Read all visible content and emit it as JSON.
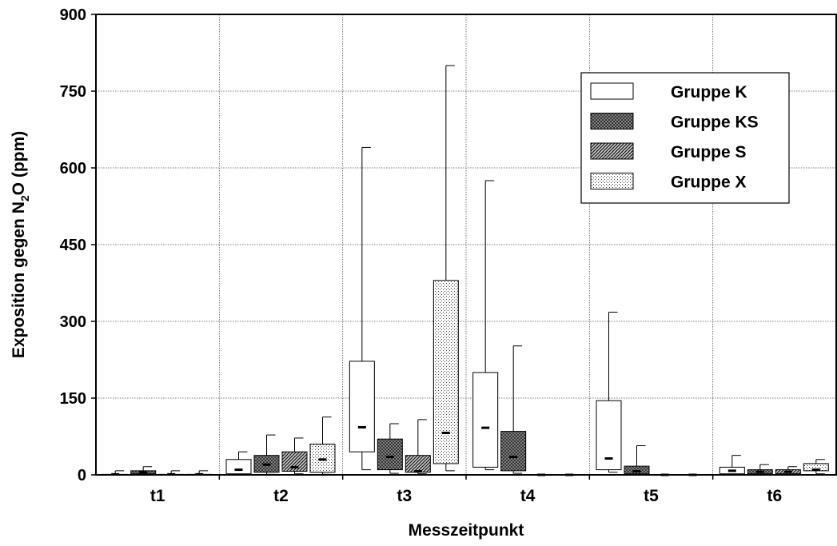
{
  "chart_data": {
    "type": "box",
    "title": "",
    "xlabel": "Messzeitpunkt",
    "ylabel": "Exposition gegen N₂O (ppm)",
    "ylabel_parts": {
      "before": "Exposition gegen N",
      "subscript": "2",
      "after": "O (ppm)"
    },
    "ylim": [
      0,
      900
    ],
    "yticks": [
      0,
      150,
      300,
      450,
      600,
      750,
      900
    ],
    "grid": true,
    "legend_position": "top-right",
    "categories": [
      "t1",
      "t2",
      "t3",
      "t4",
      "t5",
      "t6"
    ],
    "series": [
      {
        "name": "Gruppe K",
        "fill": "white",
        "boxes": [
          {
            "min": 0,
            "q1": 0,
            "median": 1,
            "q3": 1,
            "max": 8
          },
          {
            "min": 1,
            "q1": 2,
            "median": 10,
            "q3": 30,
            "max": 45
          },
          {
            "min": 10,
            "q1": 45,
            "median": 93,
            "q3": 222,
            "max": 640
          },
          {
            "min": 10,
            "q1": 15,
            "median": 92,
            "q3": 200,
            "max": 575
          },
          {
            "min": 5,
            "q1": 10,
            "median": 32,
            "q3": 145,
            "max": 318
          },
          {
            "min": 1,
            "q1": 2,
            "median": 8,
            "q3": 15,
            "max": 38
          }
        ]
      },
      {
        "name": "Gruppe KS",
        "fill": "crosshatch",
        "boxes": [
          {
            "min": 0,
            "q1": 2,
            "median": 5,
            "q3": 8,
            "max": 16
          },
          {
            "min": 1,
            "q1": 5,
            "median": 20,
            "q3": 38,
            "max": 78
          },
          {
            "min": 3,
            "q1": 10,
            "median": 35,
            "q3": 70,
            "max": 100
          },
          {
            "min": 3,
            "q1": 8,
            "median": 35,
            "q3": 85,
            "max": 252
          },
          {
            "min": 1,
            "q1": 2,
            "median": 7,
            "q3": 17,
            "max": 57
          },
          {
            "min": 0,
            "q1": 2,
            "median": 6,
            "q3": 10,
            "max": 20
          }
        ]
      },
      {
        "name": "Gruppe S",
        "fill": "diagonal",
        "boxes": [
          {
            "min": 0,
            "q1": 0,
            "median": 1,
            "q3": 1,
            "max": 8
          },
          {
            "min": 2,
            "q1": 7,
            "median": 15,
            "q3": 45,
            "max": 72
          },
          {
            "min": 2,
            "q1": 5,
            "median": 7,
            "q3": 38,
            "max": 108
          },
          {
            "min": 0,
            "q1": 0,
            "median": 0,
            "q3": 0,
            "max": 0
          },
          {
            "min": 0,
            "q1": 0,
            "median": 0,
            "q3": 0,
            "max": 0
          },
          {
            "min": 0,
            "q1": 2,
            "median": 6,
            "q3": 10,
            "max": 16
          }
        ]
      },
      {
        "name": "Gruppe X",
        "fill": "dots",
        "boxes": [
          {
            "min": 0,
            "q1": 0,
            "median": 1,
            "q3": 1,
            "max": 8
          },
          {
            "min": 1,
            "q1": 5,
            "median": 30,
            "q3": 60,
            "max": 113
          },
          {
            "min": 8,
            "q1": 22,
            "median": 82,
            "q3": 380,
            "max": 800
          },
          {
            "min": 0,
            "q1": 0,
            "median": 0,
            "q3": 0,
            "max": 0
          },
          {
            "min": 0,
            "q1": 0,
            "median": 0,
            "q3": 0,
            "max": 0
          },
          {
            "min": 2,
            "q1": 8,
            "median": 10,
            "q3": 22,
            "max": 30
          }
        ]
      }
    ]
  }
}
